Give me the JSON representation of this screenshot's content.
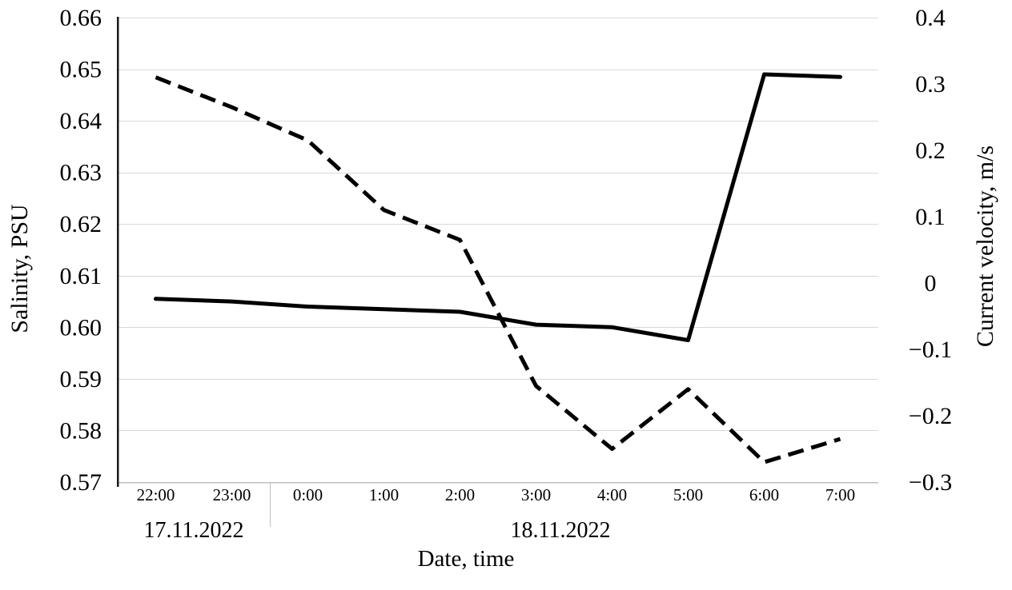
{
  "chart_data": {
    "type": "line",
    "title": "",
    "x_axis": {
      "label": "Date, time",
      "categories": [
        "22:00",
        "23:00",
        "0:00",
        "1:00",
        "2:00",
        "3:00",
        "4:00",
        "5:00",
        "6:00",
        "7:00"
      ],
      "date_groups": [
        {
          "label": "17.11.2022",
          "from_index": 0,
          "to_index": 1
        },
        {
          "label": "18.11.2022",
          "from_index": 2,
          "to_index": 9
        }
      ]
    },
    "left_axis": {
      "label": "Salinity, PSU",
      "min": 0.57,
      "max": 0.66,
      "step": 0.01,
      "tick_labels": [
        "0.66",
        "0.65",
        "0.64",
        "0.63",
        "0.62",
        "0.61",
        "0.60",
        "0.59",
        "0.58",
        "0.57"
      ]
    },
    "right_axis": {
      "label": "Current velocity, m/s",
      "min": -0.3,
      "max": 0.4,
      "step": 0.1,
      "tick_labels": [
        "0.4",
        "0.3",
        "0.2",
        "0.1",
        "0",
        "−0.1",
        "−0.2",
        "−0.3"
      ]
    },
    "series": [
      {
        "name": "Salinity",
        "axis": "left",
        "line_style": "solid",
        "color": "#000000",
        "values": [
          0.6055,
          0.605,
          0.604,
          0.6035,
          0.603,
          0.6005,
          0.6,
          0.5975,
          0.649,
          0.6485
        ]
      },
      {
        "name": "Current velocity",
        "axis": "right",
        "line_style": "dashed",
        "color": "#000000",
        "values": [
          0.31,
          0.265,
          0.215,
          0.11,
          0.065,
          -0.155,
          -0.25,
          -0.16,
          -0.27,
          -0.235
        ]
      }
    ],
    "grid": {
      "horizontal": true,
      "color": "#d9d9d9"
    },
    "legend": "none",
    "colors": {
      "text": "#000000",
      "value_axis_line": "#1a1a1a",
      "category_axis_line": "#bfbfbf",
      "gridline": "#d9d9d9"
    }
  }
}
